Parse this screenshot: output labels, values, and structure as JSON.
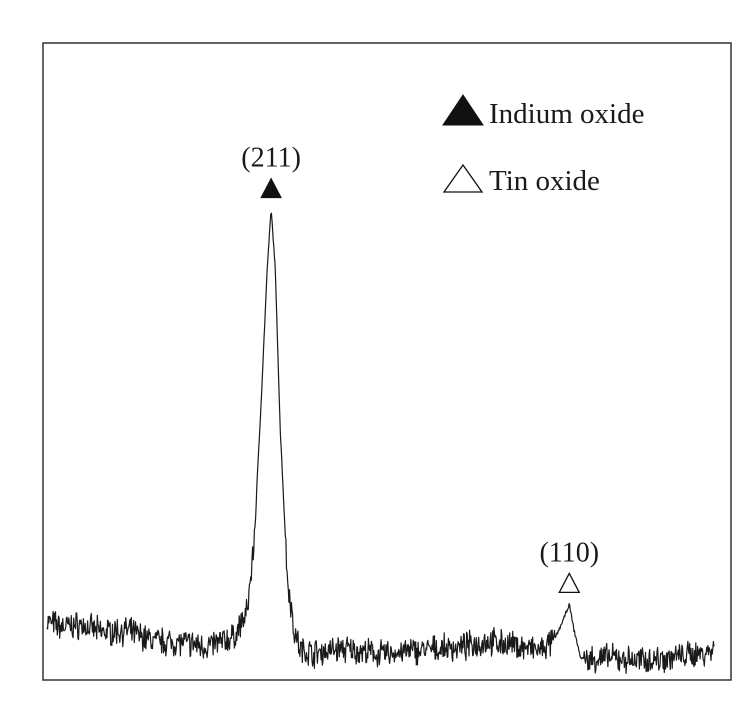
{
  "chart_data": {
    "type": "line",
    "title": "",
    "xlabel": "",
    "ylabel": "",
    "grid": false,
    "legend_placement": "top-right",
    "xlim": [
      0,
      100
    ],
    "ylim": [
      0,
      100
    ],
    "series": [
      {
        "color": "#1a1a1a",
        "x": [
          0,
          2,
          5,
          8,
          12,
          16,
          20,
          24,
          28,
          30,
          31,
          32,
          33,
          33.6,
          34.2,
          35,
          36,
          37,
          38,
          40,
          44,
          50,
          56,
          62,
          66,
          70,
          74,
          76,
          77.5,
          78.3,
          79,
          80,
          81,
          84,
          88,
          92,
          96,
          100
        ],
        "y": [
          10.5,
          9.5,
          9.8,
          8.6,
          8.8,
          7.0,
          6.7,
          6.0,
          7.6,
          12.0,
          24.0,
          47.0,
          73.0,
          84.0,
          74.0,
          44.0,
          19.0,
          9.0,
          5.4,
          4.8,
          5.6,
          4.6,
          5.3,
          5.8,
          6.9,
          6.2,
          5.2,
          7.0,
          11.0,
          13.5,
          9.0,
          4.0,
          3.6,
          4.0,
          3.5,
          3.8,
          4.4,
          5.3
        ]
      }
    ],
    "annotations": [
      {
        "text": "(211)",
        "marker": "filled-triangle",
        "x": 33.6
      },
      {
        "text": "(110)",
        "marker": "open-triangle",
        "x": 78.3
      }
    ],
    "legend": [
      {
        "marker": "filled-triangle",
        "label": "Indium oxide"
      },
      {
        "marker": "open-triangle",
        "label": "Tin oxide"
      }
    ]
  }
}
